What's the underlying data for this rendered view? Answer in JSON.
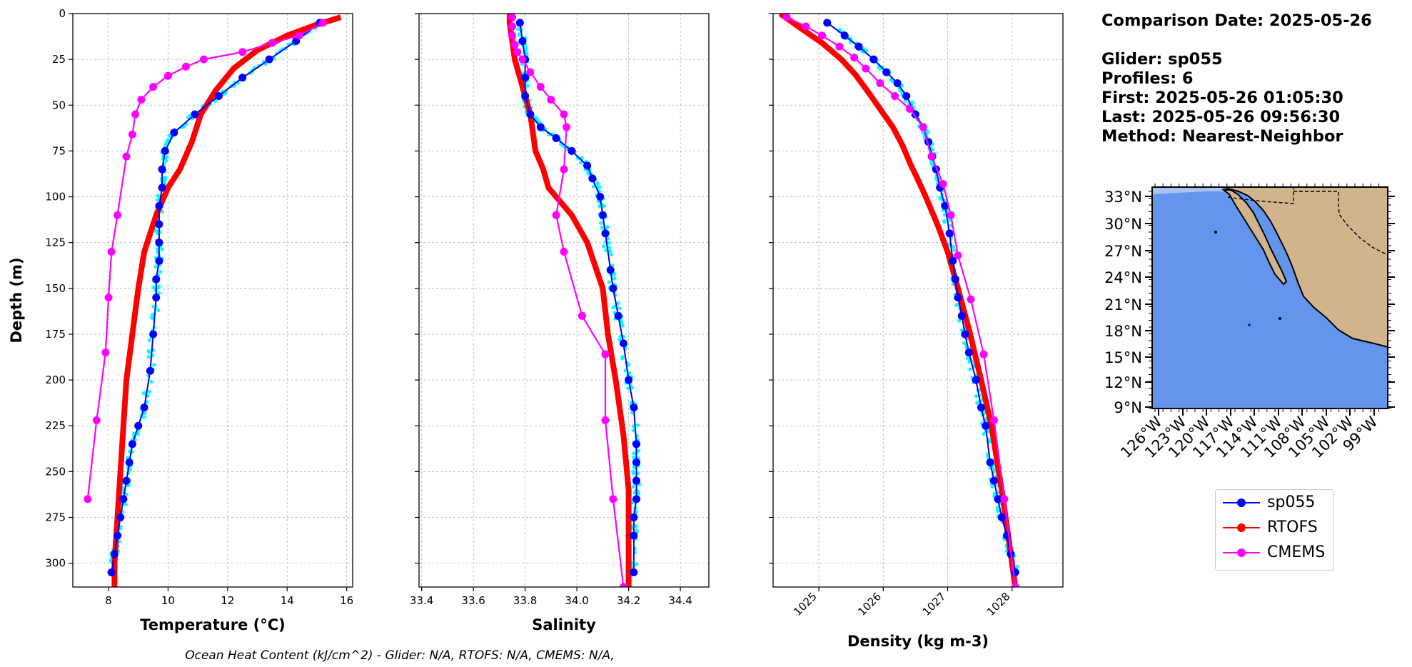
{
  "comparison": {
    "date_line": "Comparison Date: 2025-05-26",
    "glider_line": "Glider: sp055",
    "profiles_line": "Profiles: 6",
    "first_line": "First: 2025-05-26 01:05:30",
    "last_line": "Last: 2025-05-26 09:56:30",
    "method_line": "Method: Nearest-Neighbor"
  },
  "footer_text": "Ocean Heat Content (kJ/cm^2) - Glider: N/A,  RTOFS: N/A,  CMEMS: N/A,",
  "legend": [
    {
      "label": "sp055",
      "color": "#0000ff"
    },
    {
      "label": "RTOFS",
      "color": "#ff0000"
    },
    {
      "label": "CMEMS",
      "color": "#ff00ff"
    }
  ],
  "colors": {
    "glider": "#0000ff",
    "glider_raw": "#00ffff",
    "rtofs": "#ff0000",
    "cmems": "#ff00ff",
    "ocean": "#6495ed",
    "land": "#d2b48c"
  },
  "chart_data": [
    {
      "type": "line",
      "xlabel": "Temperature (°C)",
      "ylabel": "Depth (m)",
      "xlim": [
        6.8,
        16.2
      ],
      "ylim": [
        313,
        0
      ],
      "xticks": [
        8,
        10,
        12,
        14,
        16
      ],
      "yticks": [
        0,
        25,
        50,
        75,
        100,
        125,
        150,
        175,
        200,
        225,
        250,
        275,
        300
      ],
      "grid": true,
      "series": [
        {
          "name": "sp055",
          "x": [
            15.1,
            14.3,
            13.4,
            12.5,
            11.7,
            10.9,
            10.2,
            9.9,
            9.8,
            9.8,
            9.7,
            9.7,
            9.7,
            9.7,
            9.6,
            9.6,
            9.5,
            9.4,
            9.2,
            9.0,
            8.8,
            8.7,
            8.6,
            8.5,
            8.4,
            8.3,
            8.2,
            8.1
          ],
          "y": [
            5,
            15,
            25,
            35,
            45,
            55,
            65,
            75,
            85,
            95,
            105,
            115,
            125,
            135,
            145,
            155,
            175,
            195,
            215,
            225,
            235,
            245,
            255,
            265,
            275,
            285,
            295,
            305
          ]
        },
        {
          "name": "RTOFS",
          "x": [
            15.8,
            15.0,
            14.0,
            13.0,
            12.2,
            11.6,
            11.1,
            10.8,
            10.4,
            10.0,
            9.6,
            9.2,
            9.0,
            8.8,
            8.6,
            8.5,
            8.4,
            8.3,
            8.2,
            8.2
          ],
          "y": [
            2,
            6,
            12,
            20,
            30,
            42,
            55,
            70,
            85,
            95,
            110,
            130,
            150,
            175,
            200,
            225,
            250,
            275,
            300,
            313
          ]
        },
        {
          "name": "CMEMS",
          "x": [
            15.2,
            14.4,
            13.5,
            12.5,
            11.2,
            10.6,
            10.0,
            9.5,
            9.1,
            8.9,
            8.8,
            8.6,
            8.3,
            8.1,
            8.0,
            7.9,
            7.6,
            7.3
          ],
          "y": [
            5,
            12,
            16,
            21,
            25,
            29,
            34,
            40,
            47,
            55,
            66,
            78,
            110,
            130,
            155,
            185,
            222,
            265
          ]
        }
      ]
    },
    {
      "type": "line",
      "xlabel": "Salinity",
      "xlim": [
        33.39,
        34.51
      ],
      "ylim": [
        313,
        0
      ],
      "xticks": [
        33.4,
        33.6,
        33.8,
        34.0,
        34.2,
        34.4
      ],
      "grid": true,
      "series": [
        {
          "name": "sp055",
          "x": [
            33.78,
            33.79,
            33.8,
            33.8,
            33.8,
            33.82,
            33.86,
            33.92,
            33.98,
            34.04,
            34.06,
            34.09,
            34.1,
            34.11,
            34.13,
            34.14,
            34.16,
            34.18,
            34.2,
            34.22,
            34.23,
            34.23,
            34.23,
            34.23,
            34.22,
            34.22,
            34.22
          ],
          "y": [
            5,
            15,
            25,
            35,
            45,
            55,
            62,
            68,
            75,
            83,
            90,
            100,
            110,
            120,
            140,
            150,
            165,
            180,
            200,
            215,
            235,
            245,
            255,
            265,
            275,
            285,
            305
          ]
        },
        {
          "name": "RTOFS",
          "x": [
            33.74,
            33.74,
            33.75,
            33.76,
            33.78,
            33.8,
            33.82,
            33.83,
            33.84,
            33.87,
            33.89,
            33.92,
            33.98,
            34.04,
            34.1,
            34.12,
            34.15,
            34.18,
            34.2,
            34.2
          ],
          "y": [
            0,
            5,
            15,
            25,
            35,
            45,
            55,
            65,
            75,
            85,
            95,
            100,
            110,
            125,
            150,
            175,
            200,
            230,
            260,
            313
          ]
        },
        {
          "name": "CMEMS",
          "x": [
            33.75,
            33.75,
            33.75,
            33.76,
            33.77,
            33.79,
            33.82,
            33.86,
            33.9,
            33.95,
            33.96,
            33.95,
            33.92,
            33.95,
            34.02,
            34.11,
            34.11,
            34.14,
            34.18
          ],
          "y": [
            2,
            7,
            12,
            17,
            21,
            25,
            32,
            40,
            47,
            55,
            62,
            85,
            110,
            130,
            165,
            186,
            222,
            265,
            313
          ]
        }
      ]
    },
    {
      "type": "line",
      "xlabel": "Density (kg m-3)",
      "xlim": [
        1024.29,
        1028.79
      ],
      "ylim": [
        313,
        0
      ],
      "xticks": [
        1025,
        1026,
        1027,
        1028
      ],
      "grid": true,
      "series": [
        {
          "name": "sp055",
          "x": [
            1025.13,
            1025.4,
            1025.62,
            1025.85,
            1026.05,
            1026.22,
            1026.36,
            1026.5,
            1026.62,
            1026.7,
            1026.76,
            1026.82,
            1026.88,
            1026.96,
            1027.03,
            1027.08,
            1027.12,
            1027.16,
            1027.22,
            1027.27,
            1027.33,
            1027.44,
            1027.52,
            1027.59,
            1027.66,
            1027.72,
            1027.78,
            1027.84,
            1027.92,
            1027.98,
            1028.05
          ],
          "y": [
            5,
            12,
            18,
            25,
            32,
            38,
            45,
            55,
            62,
            70,
            78,
            85,
            95,
            105,
            120,
            135,
            145,
            155,
            165,
            175,
            185,
            200,
            215,
            225,
            245,
            255,
            265,
            275,
            285,
            295,
            305
          ]
        },
        {
          "name": "RTOFS",
          "x": [
            1024.4,
            1024.6,
            1024.8,
            1025.05,
            1025.35,
            1025.56,
            1025.75,
            1025.95,
            1026.15,
            1026.3,
            1026.42,
            1026.53,
            1026.66,
            1026.84,
            1027.0,
            1027.16,
            1027.35,
            1027.52,
            1027.68,
            1027.84,
            1027.98,
            1028.05
          ],
          "y": [
            0,
            5,
            10,
            16,
            25,
            33,
            42,
            52,
            62,
            72,
            82,
            90,
            100,
            115,
            130,
            150,
            175,
            200,
            225,
            260,
            295,
            313
          ]
        },
        {
          "name": "CMEMS",
          "x": [
            1024.5,
            1024.8,
            1025.05,
            1025.32,
            1025.55,
            1025.73,
            1025.95,
            1026.18,
            1026.41,
            1026.62,
            1026.75,
            1026.93,
            1027.05,
            1027.16,
            1027.36,
            1027.56,
            1027.72,
            1027.88,
            1028.05
          ],
          "y": [
            2,
            7,
            12,
            18,
            24,
            30,
            38,
            45,
            52,
            62,
            78,
            93,
            110,
            132,
            156,
            186,
            222,
            265,
            313
          ]
        }
      ]
    }
  ],
  "map": {
    "lat_labels": [
      "33°N",
      "30°N",
      "27°N",
      "24°N",
      "21°N",
      "18°N",
      "15°N",
      "12°N",
      "9°N"
    ],
    "lon_labels": [
      "126°W",
      "123°W",
      "120°W",
      "117°W",
      "114°W",
      "111°W",
      "108°W",
      "105°W",
      "102°W",
      "99°W"
    ]
  }
}
